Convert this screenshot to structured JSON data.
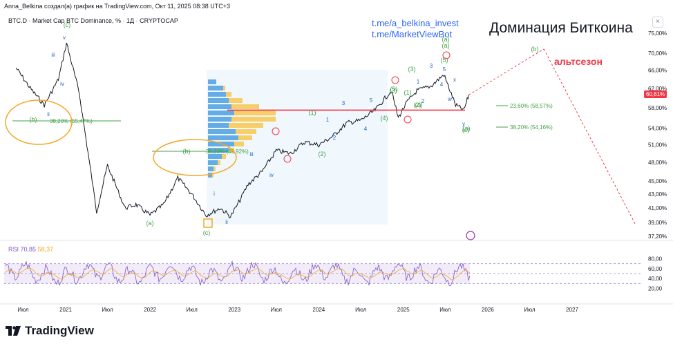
{
  "header": {
    "credit": "Anna_Belkina создал(а) график на TradingView.com, Окт 11, 2025 08:38 UTC+3",
    "symbol": "BTC.D · Market Cap BTC Dominance, % · 1Д · CRYPTOCAP",
    "telegram_1": "t.me/a_belkina_invest",
    "telegram_2": "t.me/MarketViewBot",
    "title": "Доминация Биткоина",
    "altseason": "альтсезон",
    "close_symbol": "×"
  },
  "rsi": {
    "name": "RSI",
    "value_1": "70,85",
    "value_2": "58,37",
    "ticks": [
      "80,00",
      "60,00",
      "40,00",
      "20,00"
    ]
  },
  "branding": {
    "logo_text": "TradingView"
  },
  "colors": {
    "price": "#131722",
    "accent_red": "#f23645",
    "wave_green": "#43a047",
    "wave_blue": "#1e63c7",
    "fib_green": "#43a047",
    "orange": "#f5a623",
    "rsi_line": "#7e57c2",
    "rsi_signal": "#f5a623",
    "volume_blue": "#4a9fe0",
    "volume_yellow": "#f9c74f"
  },
  "chart_data": {
    "type": "line",
    "title": "Доминация Биткоина",
    "y_axis_labels": [
      "75,00%",
      "70,00%",
      "66,00%",
      "62,00%",
      "58,00%",
      "54,00%",
      "51,00%",
      "48,00%",
      "45,00%",
      "43,00%",
      "41,00%",
      "39,00%",
      "37,20%"
    ],
    "y_scale": "log",
    "ylim": [
      37.2,
      75
    ],
    "current_value": "60,61%",
    "x_axis_labels": [
      "Июл",
      "2021",
      "Июл",
      "2022",
      "Июл",
      "2023",
      "Июл",
      "2024",
      "Июл",
      "2025",
      "Июл",
      "2026",
      "Июл",
      "2027"
    ],
    "series": [
      {
        "name": "BTC.D",
        "x": [
          "2020-06-01",
          "2020-08-01",
          "2020-10-01",
          "2020-12-01",
          "2021-01-05",
          "2021-03-01",
          "2021-05-15",
          "2021-07-01",
          "2021-09-15",
          "2021-11-01",
          "2022-01-01",
          "2022-03-01",
          "2022-05-01",
          "2022-07-01",
          "2022-09-01",
          "2022-11-01",
          "2022-12-15",
          "2023-01-15",
          "2023-03-01",
          "2023-05-01",
          "2023-07-01",
          "2023-09-01",
          "2023-11-01",
          "2024-01-01",
          "2024-03-01",
          "2024-05-01",
          "2024-07-01",
          "2024-09-01",
          "2024-11-10",
          "2024-12-10",
          "2025-01-15",
          "2025-03-01",
          "2025-05-01",
          "2025-06-25",
          "2025-08-15",
          "2025-09-20",
          "2025-10-11"
        ],
        "y": [
          66.5,
          62.0,
          58.5,
          64.0,
          72.5,
          61.0,
          40.5,
          47.5,
          41.0,
          41.5,
          40.0,
          41.5,
          45.5,
          43.0,
          40.0,
          41.0,
          39.8,
          41.5,
          44.5,
          46.5,
          50.0,
          49.5,
          51.5,
          51.0,
          52.5,
          55.0,
          55.5,
          57.5,
          61.5,
          56.0,
          59.0,
          61.5,
          62.5,
          65.0,
          58.5,
          57.5,
          60.61
        ]
      }
    ],
    "wave_labels_green": [
      "(c)",
      "(b)",
      "(a)",
      "(c)",
      "(b)",
      "(a)",
      "(a)",
      "(1)",
      "(2)",
      "(3)",
      "(4)",
      "(5)",
      "(1)",
      "(2)",
      "(3)",
      "(4)",
      "(5)",
      "(a)",
      "(b)",
      "(c)"
    ],
    "wave_labels_blue": [
      "v",
      "iii",
      "iv",
      "ii",
      "i",
      "ii",
      "iii",
      "iv",
      "1",
      "2",
      "3",
      "4",
      "5",
      "1",
      "2",
      "3",
      "4",
      "5",
      "x",
      "w",
      "y"
    ],
    "fib_levels": [
      {
        "label": "38,20% (55,47%)"
      },
      {
        "label": "38,20% (49,92%)"
      },
      {
        "label": "23,60% (58,57%)"
      },
      {
        "label": "38,20% (54,16%)"
      }
    ],
    "horizontal_level": 57.5,
    "projection": {
      "points": [
        {
          "x": "2025-10-11",
          "y": 60.61
        },
        {
          "x": "2026-09-01",
          "y": 71.0
        },
        {
          "x": "2027-10-01",
          "y": 38.8
        }
      ]
    }
  }
}
